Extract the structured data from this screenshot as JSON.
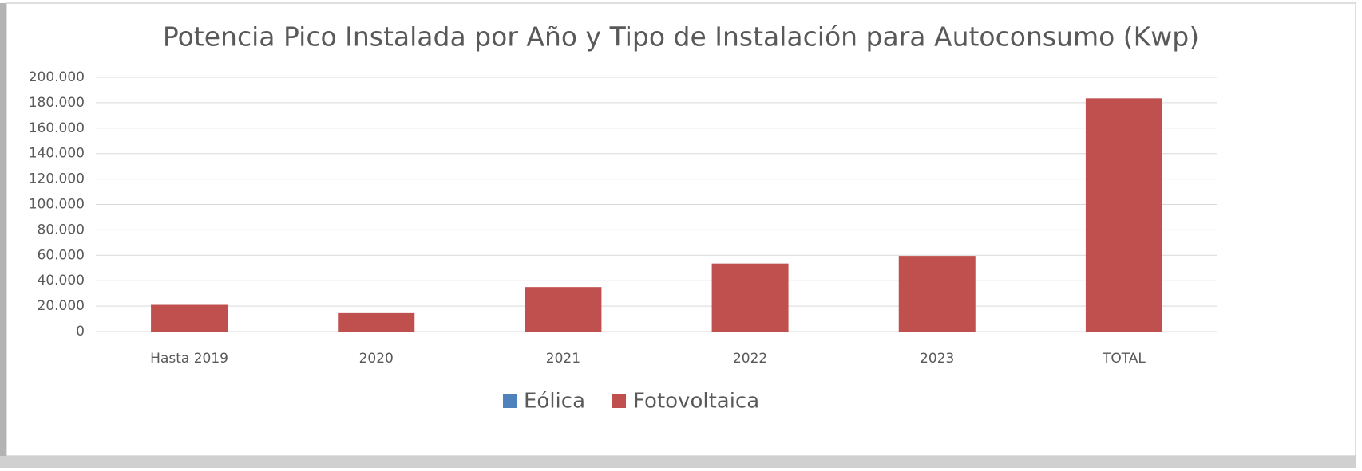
{
  "chart_data": {
    "type": "bar",
    "stacked": true,
    "title": "Potencia Pico Instalada por Año y Tipo de Instalación para Autoconsumo (Kwp)",
    "categories": [
      "Hasta 2019",
      "2020",
      "2021",
      "2022",
      "2023",
      "TOTAL"
    ],
    "series": [
      {
        "name": "Eólica",
        "color": "#4f81bd",
        "values": [
          0,
          0,
          0,
          0,
          0,
          0
        ]
      },
      {
        "name": "Fotovoltaica",
        "color": "#c0504d",
        "values": [
          21000,
          14500,
          35000,
          53500,
          59500,
          183500
        ]
      }
    ],
    "ylim": [
      0,
      200000
    ],
    "yticks": [
      0,
      {
        "value": 20000,
        "label": "20.000"
      },
      {
        "value": 40000,
        "label": "40.000"
      },
      {
        "value": 60000,
        "label": "60.000"
      },
      {
        "value": 80000,
        "label": "80.000"
      },
      {
        "value": 100000,
        "label": "100.000"
      },
      {
        "value": 120000,
        "label": "120.000"
      },
      {
        "value": 140000,
        "label": "140.000"
      },
      {
        "value": 160000,
        "label": "160.000"
      },
      {
        "value": 180000,
        "label": "180.000"
      },
      {
        "value": 200000,
        "label": "200.000"
      }
    ],
    "grid": true,
    "legend": "bottom"
  }
}
